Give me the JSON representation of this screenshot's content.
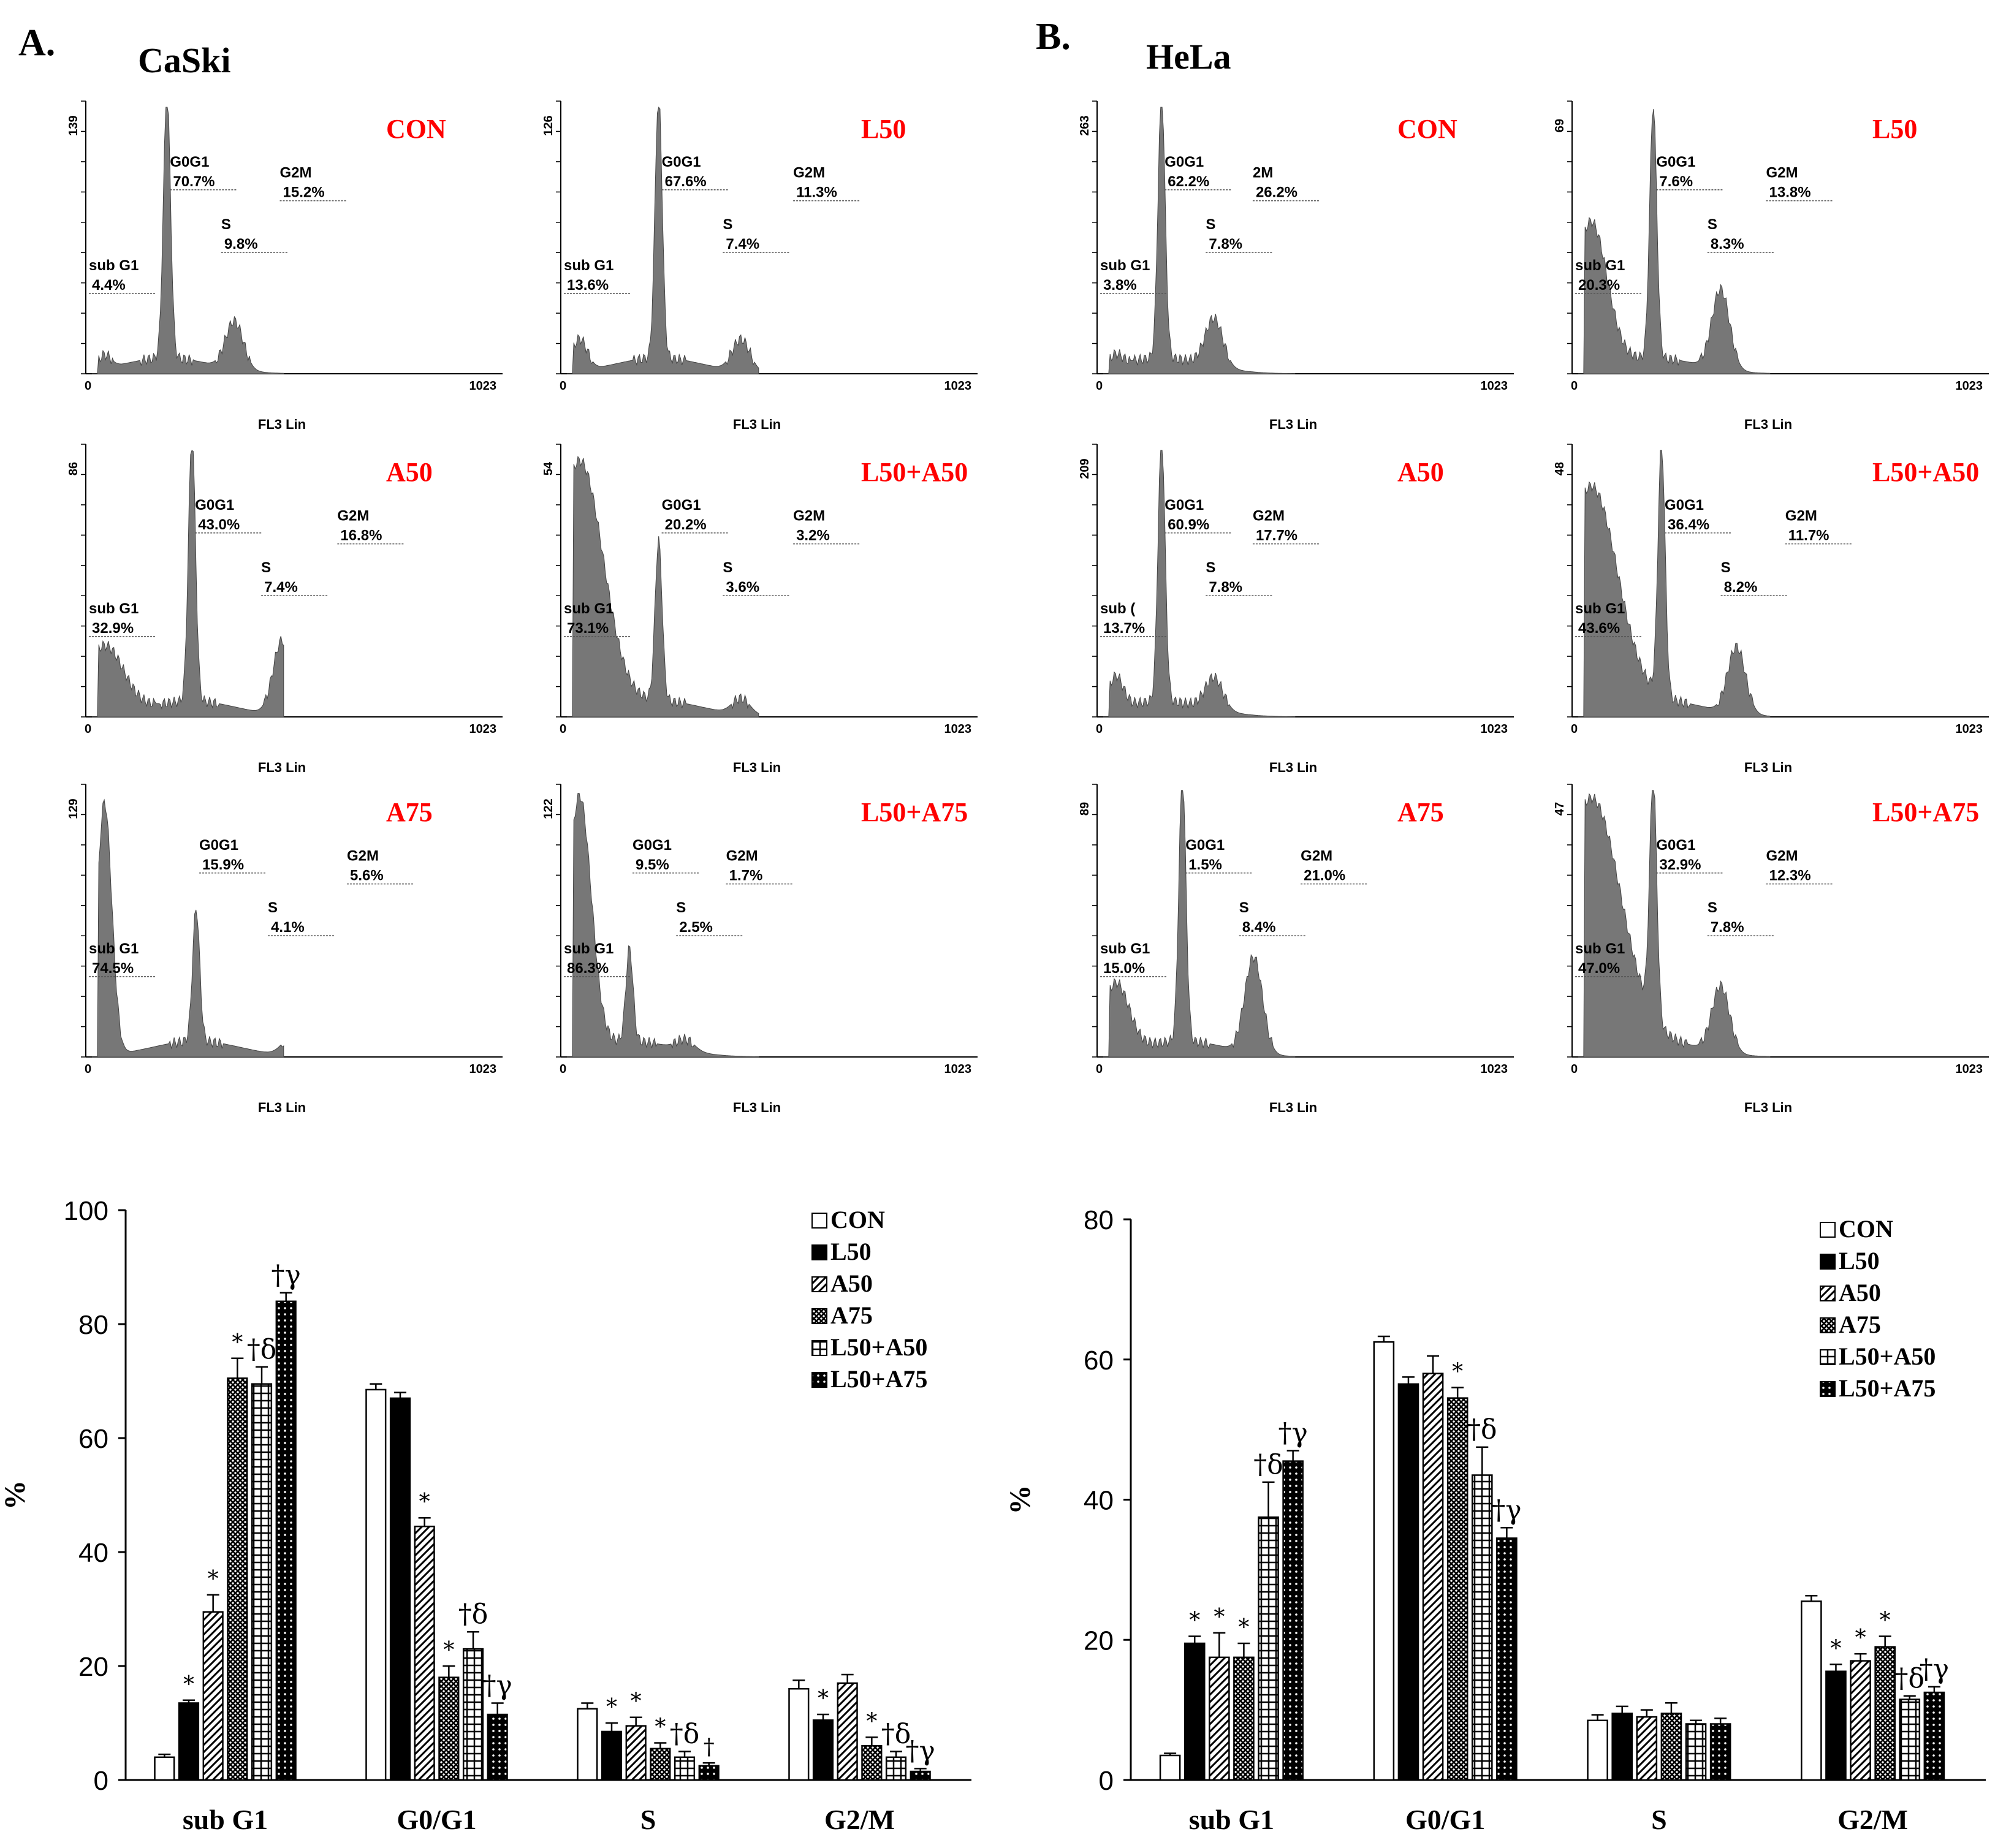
{
  "panels": [
    {
      "label": "A.",
      "cell_line": "CaSki",
      "histograms": [
        {
          "title": "CON",
          "ymax_label": "139",
          "x0": "0",
          "x1": "1023",
          "xlabel": "FL3 Lin",
          "gates": [
            {
              "name": "sub G1",
              "pct": "4.4%"
            },
            {
              "name": "G0G1",
              "pct": "70.7%"
            },
            {
              "name": "S",
              "pct": "9.8%"
            },
            {
              "name": "G2M",
              "pct": "15.2%"
            }
          ]
        },
        {
          "title": "L50",
          "ymax_label": "126",
          "x0": "0",
          "x1": "1023",
          "xlabel": "FL3 Lin",
          "gates": [
            {
              "name": "sub G1",
              "pct": "13.6%"
            },
            {
              "name": "G0G1",
              "pct": "67.6%"
            },
            {
              "name": "S",
              "pct": "7.4%"
            },
            {
              "name": "G2M",
              "pct": "11.3%"
            }
          ]
        },
        {
          "title": "A50",
          "ymax_label": "86",
          "x0": "0",
          "x1": "1023",
          "xlabel": "FL3 Lin",
          "gates": [
            {
              "name": "sub G1",
              "pct": "32.9%"
            },
            {
              "name": "G0G1",
              "pct": "43.0%"
            },
            {
              "name": "S",
              "pct": "7.4%"
            },
            {
              "name": "G2M",
              "pct": "16.8%"
            }
          ]
        },
        {
          "title": "L50+A50",
          "ymax_label": "54",
          "x0": "0",
          "x1": "1023",
          "xlabel": "FL3 Lin",
          "gates": [
            {
              "name": "sub G1",
              "pct": "73.1%"
            },
            {
              "name": "G0G1",
              "pct": "20.2%"
            },
            {
              "name": "S",
              "pct": "3.6%"
            },
            {
              "name": "G2M",
              "pct": "3.2%"
            }
          ]
        },
        {
          "title": "A75",
          "ymax_label": "129",
          "x0": "0",
          "x1": "1023",
          "xlabel": "FL3 Lin",
          "gates": [
            {
              "name": "sub G1",
              "pct": "74.5%"
            },
            {
              "name": "G0G1",
              "pct": "15.9%"
            },
            {
              "name": "S",
              "pct": "4.1%"
            },
            {
              "name": "G2M",
              "pct": "5.6%"
            }
          ]
        },
        {
          "title": "L50+A75",
          "ymax_label": "122",
          "x0": "0",
          "x1": "1023",
          "xlabel": "FL3 Lin",
          "gates": [
            {
              "name": "sub G1",
              "pct": "86.3%"
            },
            {
              "name": "G0G1",
              "pct": "9.5%"
            },
            {
              "name": "S",
              "pct": "2.5%"
            },
            {
              "name": "G2M",
              "pct": "1.7%"
            }
          ]
        }
      ]
    },
    {
      "label": "B.",
      "cell_line": "HeLa",
      "histograms": [
        {
          "title": "CON",
          "ymax_label": "263",
          "x0": "0",
          "x1": "1023",
          "xlabel": "FL3 Lin",
          "gates": [
            {
              "name": "sub G1",
              "pct": "3.8%"
            },
            {
              "name": "G0G1",
              "pct": "62.2%"
            },
            {
              "name": "S",
              "pct": "7.8%"
            },
            {
              "name": "2M",
              "pct": "26.2%"
            }
          ]
        },
        {
          "title": "L50",
          "ymax_label": "69",
          "x0": "0",
          "x1": "1023",
          "xlabel": "FL3 Lin",
          "gates": [
            {
              "name": "sub G1",
              "pct": "20.3%"
            },
            {
              "name": "G0G1",
              "pct": "7.6%"
            },
            {
              "name": "S",
              "pct": "8.3%"
            },
            {
              "name": "G2M",
              "pct": "13.8%"
            }
          ]
        },
        {
          "title": "A50",
          "ymax_label": "209",
          "x0": "0",
          "x1": "1023",
          "xlabel": "FL3 Lin",
          "gates": [
            {
              "name": "sub (",
              "pct": "13.7%"
            },
            {
              "name": "G0G1",
              "pct": "60.9%"
            },
            {
              "name": "S",
              "pct": "7.8%"
            },
            {
              "name": "G2M",
              "pct": "17.7%"
            }
          ]
        },
        {
          "title": "L50+A50",
          "ymax_label": "48",
          "x0": "0",
          "x1": "1023",
          "xlabel": "FL3 Lin",
          "gates": [
            {
              "name": "sub G1",
              "pct": "43.6%"
            },
            {
              "name": "G0G1",
              "pct": "36.4%"
            },
            {
              "name": "S",
              "pct": "8.2%"
            },
            {
              "name": "G2M",
              "pct": "11.7%"
            }
          ]
        },
        {
          "title": "A75",
          "ymax_label": "89",
          "x0": "0",
          "x1": "1023",
          "xlabel": "FL3 Lin",
          "gates": [
            {
              "name": "sub G1",
              "pct": "15.0%"
            },
            {
              "name": "G0G1",
              "pct": "1.5%"
            },
            {
              "name": "S",
              "pct": "8.4%"
            },
            {
              "name": "G2M",
              "pct": "21.0%"
            }
          ]
        },
        {
          "title": "L50+A75",
          "ymax_label": "47",
          "x0": "0",
          "x1": "1023",
          "xlabel": "FL3 Lin",
          "gates": [
            {
              "name": "sub G1",
              "pct": "47.0%"
            },
            {
              "name": "G0G1",
              "pct": "32.9%"
            },
            {
              "name": "S",
              "pct": "7.8%"
            },
            {
              "name": "G2M",
              "pct": "12.3%"
            }
          ]
        }
      ]
    }
  ],
  "colors": {
    "histogram_fill": "#777777",
    "title_red": "#ff0000",
    "bar_white": "#ffffff",
    "bar_black": "#000000"
  },
  "chart_data": [
    {
      "type": "bar",
      "ylabel": "%",
      "ylim": [
        0,
        100
      ],
      "yticks": [
        0,
        20,
        40,
        60,
        80,
        100
      ],
      "categories": [
        "sub G1",
        "G0/G1",
        "S",
        "G2/M"
      ],
      "legend_placement": "top-right",
      "series": [
        {
          "name": "CON",
          "pattern": "white",
          "values": [
            4,
            68.5,
            12.5,
            16
          ],
          "errors": [
            0.5,
            1,
            1,
            1.5
          ]
        },
        {
          "name": "L50",
          "pattern": "black",
          "values": [
            13.5,
            67,
            8.5,
            10.5
          ],
          "errors": [
            0.5,
            1,
            1.5,
            1
          ]
        },
        {
          "name": "A50",
          "pattern": "diagonal",
          "values": [
            29.5,
            44.5,
            9.5,
            17
          ],
          "errors": [
            3,
            1.5,
            1.5,
            1.5
          ]
        },
        {
          "name": "A75",
          "pattern": "crosshatch",
          "values": [
            70.5,
            18,
            5.5,
            6
          ],
          "errors": [
            3.5,
            2,
            1,
            1.5
          ]
        },
        {
          "name": "L50+A50",
          "pattern": "grid",
          "values": [
            69.5,
            23,
            4,
            4
          ],
          "errors": [
            3,
            3,
            1,
            1
          ]
        },
        {
          "name": "L50+A75",
          "pattern": "dots",
          "values": [
            84,
            11.5,
            2.5,
            1.5
          ],
          "errors": [
            1.5,
            2,
            0.5,
            0.5
          ]
        }
      ],
      "annotations": [
        {
          "category": 0,
          "series": 1,
          "text": "*"
        },
        {
          "category": 0,
          "series": 2,
          "text": "*"
        },
        {
          "category": 0,
          "series": 3,
          "text": "*"
        },
        {
          "category": 0,
          "series": 4,
          "text": "†δ"
        },
        {
          "category": 0,
          "series": 5,
          "text": "†γ"
        },
        {
          "category": 1,
          "series": 2,
          "text": "*"
        },
        {
          "category": 1,
          "series": 3,
          "text": "*"
        },
        {
          "category": 1,
          "series": 4,
          "text": "†δ"
        },
        {
          "category": 1,
          "series": 5,
          "text": "†γ"
        },
        {
          "category": 2,
          "series": 1,
          "text": "*"
        },
        {
          "category": 2,
          "series": 2,
          "text": "*"
        },
        {
          "category": 2,
          "series": 3,
          "text": "*"
        },
        {
          "category": 2,
          "series": 4,
          "text": "†δ"
        },
        {
          "category": 2,
          "series": 5,
          "text": "†"
        },
        {
          "category": 3,
          "series": 1,
          "text": "*"
        },
        {
          "category": 3,
          "series": 3,
          "text": "*"
        },
        {
          "category": 3,
          "series": 4,
          "text": "†δ"
        },
        {
          "category": 3,
          "series": 5,
          "text": "†γ"
        }
      ]
    },
    {
      "type": "bar",
      "ylabel": "%",
      "ylim": [
        0,
        80
      ],
      "yticks": [
        0,
        20,
        40,
        60,
        80
      ],
      "categories": [
        "sub G1",
        "G0/G1",
        "S",
        "G2/M"
      ],
      "legend_placement": "top-right",
      "series": [
        {
          "name": "CON",
          "pattern": "white",
          "values": [
            3.5,
            62.5,
            8.5,
            25.5
          ],
          "errors": [
            0.3,
            0.8,
            0.8,
            0.8
          ]
        },
        {
          "name": "L50",
          "pattern": "black",
          "values": [
            19.5,
            56.5,
            9.5,
            15.5
          ],
          "errors": [
            1,
            1,
            1,
            1
          ]
        },
        {
          "name": "A50",
          "pattern": "diagonal",
          "values": [
            17.5,
            58,
            9,
            17
          ],
          "errors": [
            3.5,
            2.5,
            1,
            1
          ]
        },
        {
          "name": "A75",
          "pattern": "crosshatch",
          "values": [
            17.5,
            54.5,
            9.5,
            19
          ],
          "errors": [
            2,
            1.5,
            1.5,
            1.5
          ]
        },
        {
          "name": "L50+A50",
          "pattern": "grid",
          "values": [
            37.5,
            43.5,
            8,
            11.5
          ],
          "errors": [
            5,
            4,
            0.5,
            0.5
          ]
        },
        {
          "name": "L50+A75",
          "pattern": "dots",
          "values": [
            45.5,
            34.5,
            8,
            12.5
          ],
          "errors": [
            1.5,
            1.5,
            0.8,
            0.8
          ]
        }
      ],
      "annotations": [
        {
          "category": 0,
          "series": 1,
          "text": "*"
        },
        {
          "category": 0,
          "series": 2,
          "text": "*"
        },
        {
          "category": 0,
          "series": 3,
          "text": "*"
        },
        {
          "category": 0,
          "series": 4,
          "text": "†δ"
        },
        {
          "category": 0,
          "series": 5,
          "text": "†γ"
        },
        {
          "category": 1,
          "series": 3,
          "text": "*"
        },
        {
          "category": 1,
          "series": 4,
          "text": "†δ"
        },
        {
          "category": 1,
          "series": 5,
          "text": "†γ"
        },
        {
          "category": 3,
          "series": 1,
          "text": "*"
        },
        {
          "category": 3,
          "series": 2,
          "text": "*"
        },
        {
          "category": 3,
          "series": 3,
          "text": "*"
        },
        {
          "category": 3,
          "series": 4,
          "text": "†δ"
        },
        {
          "category": 3,
          "series": 5,
          "text": "†γ"
        }
      ]
    }
  ]
}
